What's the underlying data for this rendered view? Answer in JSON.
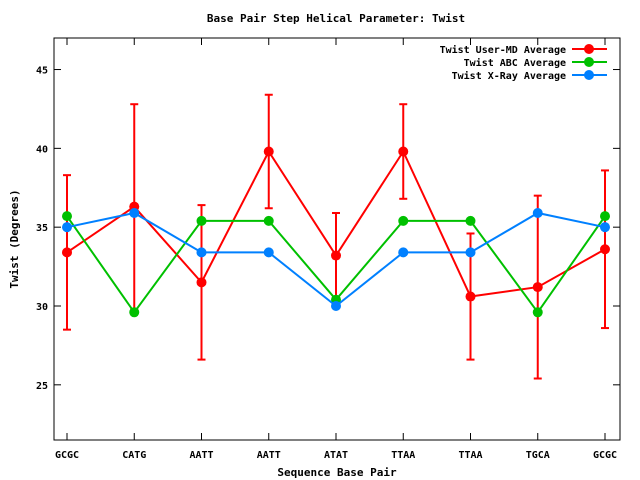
{
  "chart_data": {
    "type": "line",
    "title": "Base Pair Step Helical Parameter: Twist",
    "xlabel": "Sequence Base Pair",
    "ylabel": "Twist (Degrees)",
    "categories": [
      "GCGC",
      "CATG",
      "AATT",
      "AATT",
      "ATAT",
      "TTAA",
      "TTAA",
      "TGCA",
      "GCGC"
    ],
    "ylim": [
      21.5,
      47
    ],
    "yticks": [
      25,
      30,
      35,
      40,
      45
    ],
    "grid": false,
    "legend_position": "top-right",
    "series": [
      {
        "name": "Twist User-MD Average",
        "color": "#ff0000",
        "values": [
          33.4,
          36.3,
          31.5,
          39.8,
          33.2,
          39.8,
          30.6,
          31.2,
          33.6
        ],
        "error": [
          4.9,
          6.5,
          4.9,
          3.6,
          2.7,
          3.0,
          4.0,
          5.8,
          5.0
        ]
      },
      {
        "name": "Twist ABC Average",
        "color": "#00c000",
        "values": [
          35.7,
          29.6,
          35.4,
          35.4,
          30.4,
          35.4,
          35.4,
          29.6,
          35.7
        ],
        "error": null
      },
      {
        "name": "Twist X-Ray Average",
        "color": "#0080ff",
        "values": [
          35.0,
          35.9,
          33.4,
          33.4,
          30.0,
          33.4,
          33.4,
          35.9,
          35.0
        ],
        "error": null
      }
    ]
  }
}
